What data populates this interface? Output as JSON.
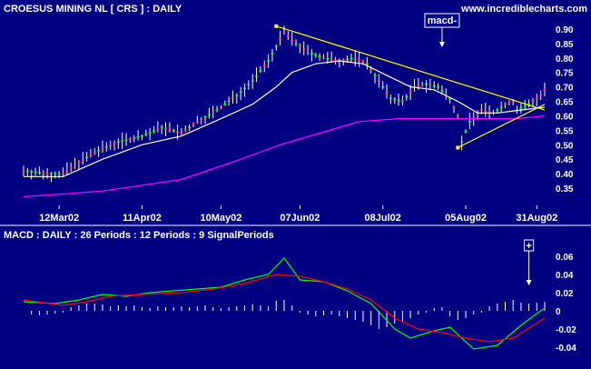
{
  "chart_data": [
    {
      "type": "line",
      "panel": "price",
      "title": "CROESUS MINING NL  [ CRS ] : DAILY",
      "source": "www.incrediblecharts.com",
      "x_tick_labels": [
        "12Mar02",
        "11Apr02",
        "10May02",
        "07Jun02",
        "08Jul02",
        "05Aug02",
        "31Aug02"
      ],
      "y_tick_labels": [
        "0.35",
        "0.40",
        "0.45",
        "0.50",
        "0.55",
        "0.60",
        "0.65",
        "0.70",
        "0.75",
        "0.80",
        "0.85",
        "0.90"
      ],
      "ylim": [
        0.32,
        0.93
      ],
      "n_days": 125,
      "x_tick_days": [
        9,
        30,
        50,
        70,
        91,
        112,
        130
      ],
      "series": [
        {
          "kind": "price",
          "points": [
            [
              0,
              0.41
            ],
            [
              6,
              0.4
            ],
            [
              10,
              0.4
            ],
            [
              14,
              0.44
            ],
            [
              19,
              0.48
            ],
            [
              24,
              0.51
            ],
            [
              30,
              0.53
            ],
            [
              35,
              0.56
            ],
            [
              40,
              0.54
            ],
            [
              44,
              0.58
            ],
            [
              49,
              0.62
            ],
            [
              54,
              0.67
            ],
            [
              58,
              0.72
            ],
            [
              62,
              0.79
            ],
            [
              66,
              0.89
            ],
            [
              68,
              0.86
            ],
            [
              72,
              0.82
            ],
            [
              76,
              0.8
            ],
            [
              80,
              0.79
            ],
            [
              84,
              0.8
            ],
            [
              87,
              0.78
            ],
            [
              90,
              0.72
            ],
            [
              93,
              0.66
            ],
            [
              96,
              0.65
            ],
            [
              99,
              0.7
            ],
            [
              102,
              0.71
            ],
            [
              105,
              0.7
            ],
            [
              108,
              0.66
            ],
            [
              110,
              0.6
            ],
            [
              111,
              0.51
            ],
            [
              113,
              0.58
            ],
            [
              116,
              0.62
            ],
            [
              119,
              0.61
            ],
            [
              122,
              0.64
            ],
            [
              124,
              0.65
            ],
            [
              125,
              0.62
            ],
            [
              128,
              0.64
            ],
            [
              131,
              0.67
            ],
            [
              132,
              0.69
            ]
          ]
        },
        {
          "kind": "moving_average_short",
          "color": "#ffffcc",
          "points": [
            [
              0,
              0.39
            ],
            [
              10,
              0.39
            ],
            [
              20,
              0.45
            ],
            [
              30,
              0.5
            ],
            [
              40,
              0.53
            ],
            [
              50,
              0.59
            ],
            [
              58,
              0.64
            ],
            [
              64,
              0.7
            ],
            [
              68,
              0.75
            ],
            [
              74,
              0.78
            ],
            [
              80,
              0.79
            ],
            [
              86,
              0.78
            ],
            [
              92,
              0.74
            ],
            [
              98,
              0.7
            ],
            [
              104,
              0.69
            ],
            [
              110,
              0.65
            ],
            [
              115,
              0.61
            ],
            [
              120,
              0.61
            ],
            [
              126,
              0.62
            ],
            [
              132,
              0.63
            ]
          ]
        },
        {
          "kind": "moving_average_long",
          "color": "#ff00ff",
          "points": [
            [
              0,
              0.32
            ],
            [
              20,
              0.34
            ],
            [
              40,
              0.38
            ],
            [
              55,
              0.45
            ],
            [
              65,
              0.5
            ],
            [
              75,
              0.54
            ],
            [
              85,
              0.58
            ],
            [
              95,
              0.59
            ],
            [
              105,
              0.59
            ],
            [
              115,
              0.59
            ],
            [
              125,
              0.59
            ],
            [
              132,
              0.6
            ]
          ]
        }
      ],
      "trendlines": [
        {
          "from": [
            64,
            0.91
          ],
          "to": [
            132,
            0.62
          ]
        },
        {
          "from": [
            110,
            0.49
          ],
          "to": [
            132,
            0.64
          ]
        }
      ],
      "annotations": [
        {
          "text": "macd-",
          "at_day": 106
        }
      ]
    },
    {
      "type": "line",
      "panel": "macd",
      "title": "MACD : DAILY : 26 Periods : 12 Periods : 9 SignalPeriods",
      "y_tick_labels": [
        "-0.04",
        "-0.02",
        "0",
        "0.02",
        "0.04",
        "0.06"
      ],
      "ylim": [
        -0.05,
        0.07
      ],
      "series": [
        {
          "name": "MACD",
          "color": "#00ff00",
          "points": [
            [
              0,
              0.01
            ],
            [
              8,
              0.008
            ],
            [
              14,
              0.012
            ],
            [
              20,
              0.018
            ],
            [
              26,
              0.016
            ],
            [
              32,
              0.02
            ],
            [
              38,
              0.022
            ],
            [
              44,
              0.024
            ],
            [
              50,
              0.026
            ],
            [
              56,
              0.034
            ],
            [
              62,
              0.04
            ],
            [
              66,
              0.058
            ],
            [
              70,
              0.034
            ],
            [
              76,
              0.032
            ],
            [
              82,
              0.022
            ],
            [
              88,
              0.008
            ],
            [
              94,
              -0.02
            ],
            [
              98,
              -0.03
            ],
            [
              104,
              -0.022
            ],
            [
              108,
              -0.018
            ],
            [
              114,
              -0.042
            ],
            [
              120,
              -0.038
            ],
            [
              126,
              -0.016
            ],
            [
              130,
              -0.003
            ],
            [
              132,
              0.003
            ]
          ]
        },
        {
          "name": "Signal",
          "color": "#ff0000",
          "points": [
            [
              0,
              0.012
            ],
            [
              10,
              0.006
            ],
            [
              16,
              0.01
            ],
            [
              22,
              0.016
            ],
            [
              30,
              0.018
            ],
            [
              40,
              0.02
            ],
            [
              48,
              0.024
            ],
            [
              56,
              0.03
            ],
            [
              64,
              0.04
            ],
            [
              70,
              0.038
            ],
            [
              76,
              0.032
            ],
            [
              82,
              0.024
            ],
            [
              88,
              0.012
            ],
            [
              94,
              -0.008
            ],
            [
              100,
              -0.02
            ],
            [
              106,
              -0.024
            ],
            [
              112,
              -0.03
            ],
            [
              118,
              -0.034
            ],
            [
              124,
              -0.03
            ],
            [
              132,
              -0.008
            ]
          ]
        }
      ],
      "histogram": [
        [
          2,
          -0.004
        ],
        [
          4,
          -0.005
        ],
        [
          6,
          -0.004
        ],
        [
          8,
          -0.003
        ],
        [
          10,
          -0.002
        ],
        [
          12,
          0.004
        ],
        [
          14,
          0.006
        ],
        [
          16,
          0.008
        ],
        [
          18,
          0.008
        ],
        [
          20,
          0.007
        ],
        [
          22,
          0.005
        ],
        [
          24,
          0.006
        ],
        [
          26,
          0.005
        ],
        [
          28,
          0.006
        ],
        [
          30,
          0.004
        ],
        [
          32,
          0.003
        ],
        [
          34,
          0.005
        ],
        [
          36,
          0.004
        ],
        [
          38,
          0.004
        ],
        [
          40,
          0.005
        ],
        [
          42,
          0.004
        ],
        [
          44,
          0.005
        ],
        [
          46,
          0.006
        ],
        [
          48,
          0.004
        ],
        [
          50,
          0.003
        ],
        [
          52,
          0.004
        ],
        [
          54,
          0.005
        ],
        [
          56,
          0.006
        ],
        [
          58,
          0.007
        ],
        [
          60,
          0.006
        ],
        [
          62,
          0.005
        ],
        [
          64,
          0.011
        ],
        [
          66,
          0.012
        ],
        [
          68,
          0.006
        ],
        [
          70,
          -0.002
        ],
        [
          72,
          -0.004
        ],
        [
          74,
          -0.006
        ],
        [
          76,
          -0.005
        ],
        [
          78,
          -0.004
        ],
        [
          80,
          -0.006
        ],
        [
          82,
          -0.008
        ],
        [
          84,
          -0.01
        ],
        [
          86,
          -0.012
        ],
        [
          88,
          -0.016
        ],
        [
          90,
          -0.02
        ],
        [
          92,
          -0.018
        ],
        [
          94,
          -0.014
        ],
        [
          96,
          -0.012
        ],
        [
          98,
          -0.008
        ],
        [
          100,
          -0.004
        ],
        [
          102,
          -0.002
        ],
        [
          104,
          0.003
        ],
        [
          106,
          0.004
        ],
        [
          108,
          -0.006
        ],
        [
          110,
          -0.01
        ],
        [
          112,
          -0.008
        ],
        [
          114,
          -0.004
        ],
        [
          116,
          -0.002
        ],
        [
          118,
          0.005
        ],
        [
          120,
          0.008
        ],
        [
          122,
          0.01
        ],
        [
          124,
          0.012
        ],
        [
          126,
          0.009
        ],
        [
          128,
          0.008
        ],
        [
          130,
          0.009
        ],
        [
          132,
          0.01
        ]
      ],
      "annotations": [
        {
          "text": "+",
          "at_day": 128
        }
      ]
    }
  ]
}
